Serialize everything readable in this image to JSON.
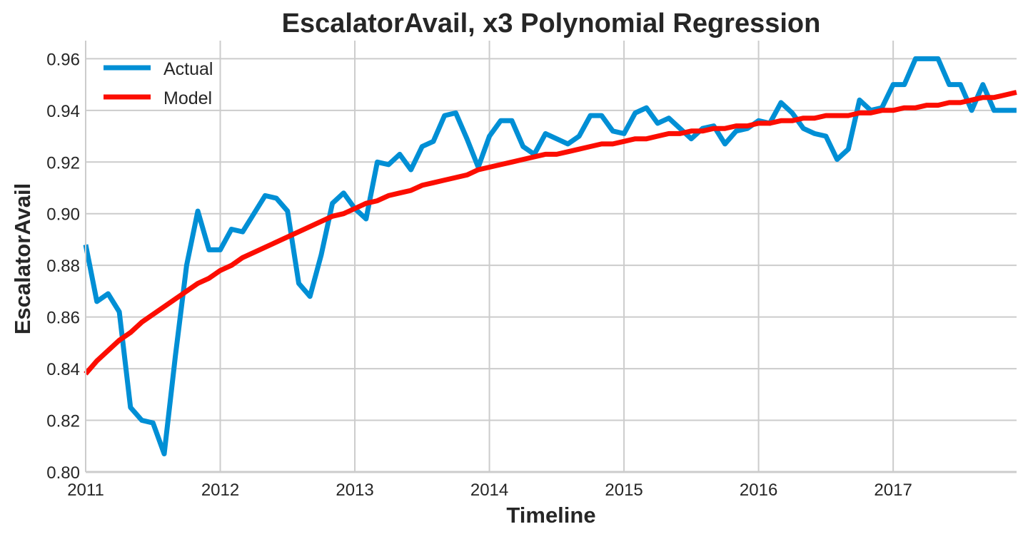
{
  "chart_data": {
    "type": "line",
    "title": "EscalatorAvail, x3 Polynomial Regression",
    "xlabel": "Timeline",
    "ylabel": "EscalatorAvail",
    "xlim": [
      2011.0,
      2017.917
    ],
    "ylim": [
      0.8,
      0.967
    ],
    "x_ticks": [
      2011,
      2012,
      2013,
      2014,
      2015,
      2016,
      2017
    ],
    "x_tick_labels": [
      "2011",
      "2012",
      "2013",
      "2014",
      "2015",
      "2016",
      "2017"
    ],
    "y_ticks": [
      0.8,
      0.82,
      0.84,
      0.86,
      0.88,
      0.9,
      0.92,
      0.94,
      0.96
    ],
    "y_tick_labels": [
      "0.80",
      "0.82",
      "0.84",
      "0.86",
      "0.88",
      "0.90",
      "0.92",
      "0.94",
      "0.96"
    ],
    "grid": true,
    "legend_position": "top-left",
    "x_frequency": "monthly",
    "x_start": "2011-01",
    "series": [
      {
        "name": "Actual",
        "color": "#008fd5",
        "values": [
          0.888,
          0.866,
          0.869,
          0.862,
          0.825,
          0.82,
          0.819,
          0.807,
          0.845,
          0.88,
          0.901,
          0.886,
          0.886,
          0.894,
          0.893,
          0.9,
          0.907,
          0.906,
          0.901,
          0.873,
          0.868,
          0.884,
          0.904,
          0.908,
          0.902,
          0.898,
          0.92,
          0.919,
          0.923,
          0.917,
          0.926,
          0.928,
          0.938,
          0.939,
          0.929,
          0.918,
          0.93,
          0.936,
          0.936,
          0.926,
          0.923,
          0.931,
          0.929,
          0.927,
          0.93,
          0.938,
          0.938,
          0.932,
          0.931,
          0.939,
          0.941,
          0.935,
          0.937,
          0.933,
          0.929,
          0.933,
          0.934,
          0.927,
          0.932,
          0.933,
          0.936,
          0.935,
          0.943,
          0.939,
          0.933,
          0.931,
          0.93,
          0.921,
          0.925,
          0.944,
          0.94,
          0.941,
          0.95,
          0.95,
          0.96,
          0.96,
          0.96,
          0.95,
          0.95,
          0.94,
          0.95,
          0.94,
          0.94,
          0.94
        ]
      },
      {
        "name": "Model",
        "color": "#fc0d00",
        "values": [
          0.838,
          0.843,
          0.847,
          0.851,
          0.854,
          0.858,
          0.861,
          0.864,
          0.867,
          0.87,
          0.873,
          0.875,
          0.878,
          0.88,
          0.883,
          0.885,
          0.887,
          0.889,
          0.891,
          0.893,
          0.895,
          0.897,
          0.899,
          0.9,
          0.902,
          0.904,
          0.905,
          0.907,
          0.908,
          0.909,
          0.911,
          0.912,
          0.913,
          0.914,
          0.915,
          0.917,
          0.918,
          0.919,
          0.92,
          0.921,
          0.922,
          0.923,
          0.923,
          0.924,
          0.925,
          0.926,
          0.927,
          0.927,
          0.928,
          0.929,
          0.929,
          0.93,
          0.931,
          0.931,
          0.932,
          0.932,
          0.933,
          0.933,
          0.934,
          0.934,
          0.935,
          0.935,
          0.936,
          0.936,
          0.937,
          0.937,
          0.938,
          0.938,
          0.938,
          0.939,
          0.939,
          0.94,
          0.94,
          0.941,
          0.941,
          0.942,
          0.942,
          0.943,
          0.943,
          0.944,
          0.945,
          0.945,
          0.946,
          0.947
        ]
      }
    ]
  }
}
